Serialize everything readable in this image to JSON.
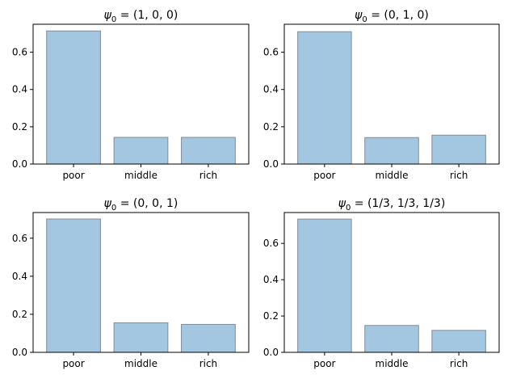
{
  "chart_data": [
    {
      "type": "bar",
      "title": {
        "prefix": "ψ",
        "sub": "0",
        "rest": " = (1, 0, 0)"
      },
      "categories": [
        "poor",
        "middle",
        "rich"
      ],
      "values": [
        0.714,
        0.143,
        0.143
      ],
      "ylim": [
        0,
        0.75
      ],
      "yticks": [
        0.0,
        0.2,
        0.4,
        0.6
      ],
      "ytick_labels": [
        "0.0",
        "0.2",
        "0.4",
        "0.6"
      ]
    },
    {
      "type": "bar",
      "title": {
        "prefix": "ψ",
        "sub": "0",
        "rest": " = (0, 1, 0)"
      },
      "categories": [
        "poor",
        "middle",
        "rich"
      ],
      "values": [
        0.71,
        0.142,
        0.155
      ],
      "ylim": [
        0,
        0.75
      ],
      "yticks": [
        0.0,
        0.2,
        0.4,
        0.6
      ],
      "ytick_labels": [
        "0.0",
        "0.2",
        "0.4",
        "0.6"
      ]
    },
    {
      "type": "bar",
      "title": {
        "prefix": "ψ",
        "sub": "0",
        "rest": " = (0, 0, 1)"
      },
      "categories": [
        "poor",
        "middle",
        "rich"
      ],
      "values": [
        0.701,
        0.155,
        0.147
      ],
      "ylim": [
        0,
        0.735
      ],
      "yticks": [
        0.0,
        0.2,
        0.4,
        0.6
      ],
      "ytick_labels": [
        "0.0",
        "0.2",
        "0.4",
        "0.6"
      ]
    },
    {
      "type": "bar",
      "title": {
        "prefix": "ψ",
        "sub": "0",
        "rest": " = (1/3, 1/3, 1/3)"
      },
      "categories": [
        "poor",
        "middle",
        "rich"
      ],
      "values": [
        0.734,
        0.148,
        0.121
      ],
      "ylim": [
        0,
        0.77
      ],
      "yticks": [
        0.0,
        0.2,
        0.4,
        0.6
      ],
      "ytick_labels": [
        "0.0",
        "0.2",
        "0.4",
        "0.6"
      ]
    }
  ],
  "colors": {
    "bar_fill": "#a3c7e0",
    "bar_edge": "#7f8c97",
    "axes": "#000000",
    "text": "#000000"
  }
}
